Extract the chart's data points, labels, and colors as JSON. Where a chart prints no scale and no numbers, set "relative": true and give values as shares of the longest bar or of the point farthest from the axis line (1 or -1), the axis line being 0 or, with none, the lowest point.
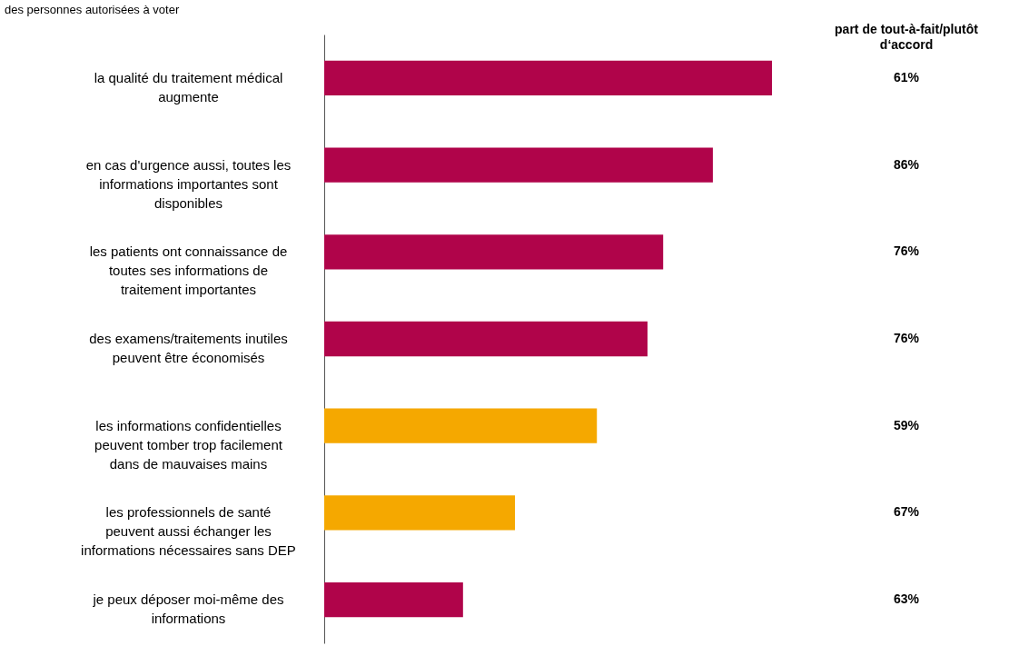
{
  "chart_data": {
    "type": "bar",
    "orientation": "horizontal",
    "relative": true,
    "subtitle": "des personnes autorisées à voter",
    "categories": [
      "la qualité du traitement médical augmente",
      "en cas d'urgence aussi, toutes les informations importantes sont disponibles",
      "les patients ont connaissance de toutes ses informations de traitement importantes",
      "des examens/traitements inutiles peuvent être économisés",
      "les informations confidentielles peuvent tomber trop facilement dans de mauvaises mains",
      "les professionnels de santé peuvent aussi échanger les informations nécessaires sans DEP",
      "je peux déposer moi-même des informations"
    ],
    "values": [
      1,
      0.868,
      0.757,
      0.722,
      0.609,
      0.426,
      0.31
    ],
    "colors": [
      "#b0044a",
      "#b0044a",
      "#b0044a",
      "#b0044a",
      "#f5a800",
      "#f5a800",
      "#b0044a"
    ],
    "annotations": [
      "part de tout-à-fait/plutôt d‘accord",
      "61%",
      "86%",
      "76%",
      "76%",
      "59%",
      "67%",
      "63%"
    ]
  }
}
